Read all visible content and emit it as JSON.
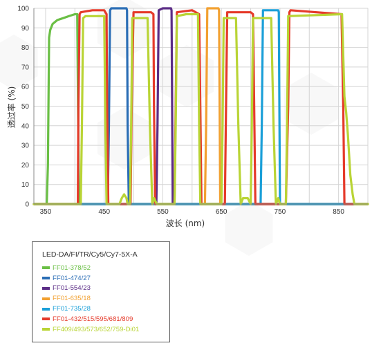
{
  "chart_data": {
    "type": "line",
    "title": "",
    "xlabel": "波长 (nm)",
    "ylabel": "透过率 (%)",
    "xlim": [
      330,
      900
    ],
    "ylim": [
      0,
      100
    ],
    "xticks": [
      "350",
      "450",
      "550",
      "650",
      "750",
      "850"
    ],
    "yticks": [
      "0",
      "10",
      "20",
      "30",
      "40",
      "50",
      "60",
      "70",
      "80",
      "90",
      "100"
    ],
    "grid": true,
    "legend_title": "LED-DA/FI/TR/Cy5/Cy7-5X-A",
    "legend_position": "bottom-left, outside plot",
    "series": [
      {
        "name": "FF01-378/52",
        "color": "#6abf45",
        "x": [
          330,
          352,
          354,
          356,
          358,
          362,
          370,
          380,
          390,
          400,
          404,
          405,
          407,
          410,
          900
        ],
        "y": [
          0,
          0,
          20,
          85,
          89,
          92,
          94,
          95,
          96,
          97,
          97,
          60,
          0,
          0,
          0
        ]
      },
      {
        "name": "FF01-474/27",
        "color": "#2a6db5",
        "x": [
          330,
          456,
          458,
          460,
          462,
          470,
          480,
          488,
          489,
          490,
          492,
          900
        ],
        "y": [
          0,
          0,
          40,
          99,
          100,
          100,
          100,
          100,
          99,
          40,
          0,
          0
        ]
      },
      {
        "name": "FF01-554/23",
        "color": "#5b2d86",
        "x": [
          330,
          539,
          541,
          543,
          550,
          560,
          564,
          565,
          567,
          900
        ],
        "y": [
          0,
          0,
          40,
          99,
          100,
          100,
          100,
          99,
          0,
          0
        ]
      },
      {
        "name": "FF01-635/18",
        "color": "#f2a030",
        "x": [
          330,
          622,
          624,
          626,
          635,
          645,
          646,
          648,
          900
        ],
        "y": [
          0,
          0,
          40,
          100,
          100,
          100,
          99,
          0,
          0
        ]
      },
      {
        "name": "FF01-735/28",
        "color": "#1a9fd8",
        "x": [
          330,
          717,
          719,
          721,
          735,
          747,
          748,
          750,
          900
        ],
        "y": [
          0,
          0,
          40,
          99,
          99,
          99,
          98,
          0,
          0
        ]
      },
      {
        "name": "FF01-432/515/595/681/809",
        "color": "#e53a2a",
        "x": [
          330,
          405,
          406,
          408,
          410,
          430,
          450,
          454,
          455,
          457,
          460,
          495,
          497,
          500,
          530,
          534,
          535,
          537,
          570,
          572,
          574,
          600,
          612,
          614,
          616,
          656,
          658,
          660,
          700,
          704,
          706,
          708,
          760,
          764,
          766,
          768,
          855,
          858,
          860,
          900
        ],
        "y": [
          0,
          0,
          50,
          97,
          98,
          99,
          99,
          97,
          50,
          0,
          0,
          0,
          50,
          98,
          98,
          97,
          50,
          0,
          0,
          50,
          98,
          99,
          97,
          50,
          0,
          0,
          50,
          98,
          98,
          97,
          50,
          0,
          0,
          50,
          98,
          99,
          97,
          50,
          0,
          0
        ]
      },
      {
        "name": "FF409/493/573/652/759-Di01",
        "color": "#b9d435",
        "x": [
          330,
          410,
          412,
          414,
          418,
          450,
          452,
          454,
          476,
          480,
          484,
          488,
          490,
          494,
          496,
          498,
          524,
          528,
          532,
          535,
          540,
          570,
          572,
          574,
          590,
          610,
          612,
          614,
          618,
          650,
          652,
          654,
          675,
          679,
          683,
          687,
          695,
          700,
          702,
          704,
          735,
          739,
          743,
          747,
          750,
          760,
          762,
          764,
          856,
          860,
          863,
          866,
          870,
          874,
          877,
          880,
          900
        ],
        "y": [
          0,
          0,
          40,
          95,
          96,
          96,
          40,
          0,
          0,
          3,
          5,
          3,
          0,
          0,
          40,
          95,
          95,
          40,
          0,
          3,
          0,
          0,
          40,
          96,
          97,
          97,
          40,
          0,
          0,
          0,
          40,
          95,
          95,
          40,
          0,
          3,
          3,
          0,
          40,
          95,
          95,
          40,
          0,
          3,
          0,
          0,
          40,
          96,
          97,
          55,
          47,
          35,
          15,
          5,
          0,
          0,
          0
        ]
      }
    ]
  }
}
